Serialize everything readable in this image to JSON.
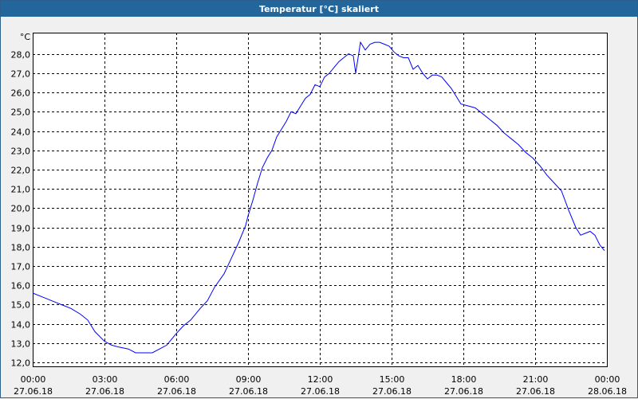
{
  "window": {
    "title": "Temperatur [°C] skaliert"
  },
  "chart_data": {
    "type": "line",
    "title": "Temperatur [°C] skaliert",
    "ylabel": "°C",
    "xlabel": "",
    "ylim": [
      11.8,
      29.1
    ],
    "xlim": [
      0,
      24
    ],
    "grid": true,
    "y_ticks": [
      12,
      13,
      14,
      15,
      16,
      17,
      18,
      19,
      20,
      21,
      22,
      23,
      24,
      25,
      26,
      27,
      28
    ],
    "y_tick_labels": [
      "12,0",
      "13,0",
      "14,0",
      "15,0",
      "16,0",
      "17,0",
      "18,0",
      "19,0",
      "20,0",
      "21,0",
      "22,0",
      "23,0",
      "24,0",
      "25,0",
      "26,0",
      "27,0",
      "28,0"
    ],
    "x_ticks": [
      0,
      3,
      6,
      9,
      12,
      15,
      18,
      21,
      24
    ],
    "x_tick_times": [
      "00:00",
      "03:00",
      "06:00",
      "09:00",
      "12:00",
      "15:00",
      "18:00",
      "21:00",
      "00:00"
    ],
    "x_tick_dates": [
      "27.06.18",
      "27.06.18",
      "27.06.18",
      "27.06.18",
      "27.06.18",
      "27.06.18",
      "27.06.18",
      "27.06.18",
      "28.06.18"
    ],
    "series": [
      {
        "color": "#0000ff",
        "x": [
          0,
          0.4,
          0.8,
          1.2,
          1.6,
          2.0,
          2.3,
          2.6,
          3.0,
          3.3,
          3.6,
          4.0,
          4.3,
          4.6,
          5.0,
          5.3,
          5.6,
          6.0,
          6.3,
          6.6,
          7.0,
          7.3,
          7.6,
          8.0,
          8.3,
          8.6,
          8.9,
          9.0,
          9.2,
          9.4,
          9.6,
          9.8,
          10.0,
          10.2,
          10.4,
          10.6,
          10.8,
          11.0,
          11.2,
          11.4,
          11.6,
          11.8,
          12.0,
          12.2,
          12.4,
          12.6,
          12.8,
          13.0,
          13.2,
          13.4,
          13.5,
          13.7,
          13.9,
          14.1,
          14.3,
          14.5,
          14.7,
          14.9,
          15.1,
          15.3,
          15.5,
          15.7,
          15.9,
          16.1,
          16.3,
          16.5,
          16.7,
          16.9,
          17.1,
          17.3,
          17.5,
          17.7,
          17.9,
          18.2,
          18.5,
          18.8,
          19.1,
          19.4,
          19.7,
          20.0,
          20.3,
          20.6,
          20.9,
          21.2,
          21.5,
          21.8,
          22.1,
          22.4,
          22.7,
          22.9,
          23.1,
          23.3,
          23.5,
          23.7,
          23.9
        ],
        "y": [
          15.6,
          15.4,
          15.2,
          15.0,
          14.8,
          14.5,
          14.2,
          13.6,
          13.1,
          12.9,
          12.8,
          12.7,
          12.5,
          12.5,
          12.5,
          12.7,
          12.9,
          13.5,
          13.9,
          14.2,
          14.8,
          15.2,
          15.9,
          16.6,
          17.4,
          18.2,
          19.1,
          19.6,
          20.4,
          21.3,
          22.1,
          22.6,
          23.0,
          23.7,
          24.1,
          24.5,
          25.0,
          24.9,
          25.3,
          25.7,
          25.9,
          26.4,
          26.3,
          26.8,
          27.0,
          27.3,
          27.6,
          27.8,
          28.0,
          27.9,
          27.0,
          28.6,
          28.2,
          28.5,
          28.6,
          28.6,
          28.5,
          28.4,
          28.1,
          27.9,
          27.8,
          27.8,
          27.2,
          27.4,
          27.0,
          26.7,
          26.9,
          26.9,
          26.8,
          26.5,
          26.2,
          25.8,
          25.4,
          25.3,
          25.2,
          24.9,
          24.6,
          24.3,
          23.9,
          23.6,
          23.3,
          22.9,
          22.6,
          22.2,
          21.7,
          21.3,
          20.9,
          19.9,
          19.0,
          18.6,
          18.7,
          18.8,
          18.6,
          18.1,
          17.8
        ]
      }
    ]
  }
}
